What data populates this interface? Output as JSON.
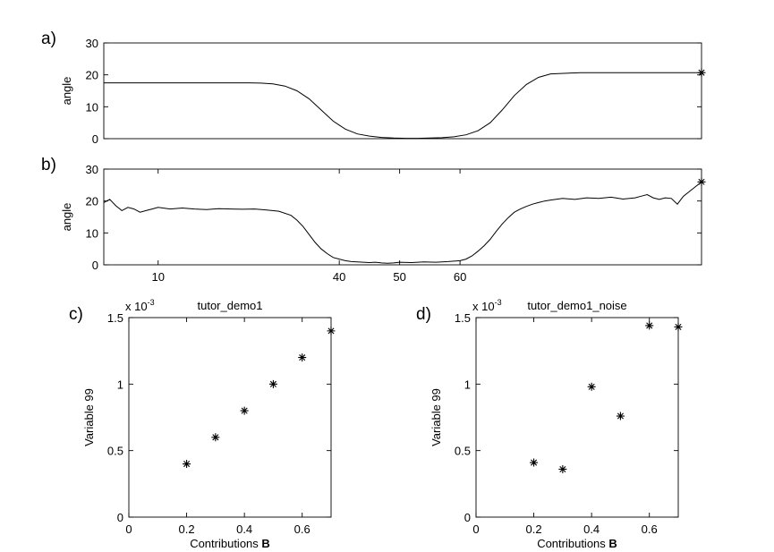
{
  "chart_data": [
    {
      "type": "line",
      "panel_label": "a)",
      "ylabel": "angle",
      "xlim": [
        1,
        100
      ],
      "ylim": [
        0,
        30
      ],
      "yticks": [
        0,
        10,
        20,
        30
      ],
      "xticks": [],
      "series": [
        {
          "x": [
            1,
            5,
            10,
            15,
            20,
            25,
            27,
            29,
            31,
            33,
            35,
            37,
            39,
            41,
            43,
            45,
            47,
            49,
            51,
            53,
            55,
            57,
            59,
            61,
            63,
            65,
            67,
            69,
            71,
            73,
            75,
            80,
            90,
            100
          ],
          "values": [
            17.5,
            17.5,
            17.5,
            17.5,
            17.5,
            17.5,
            17.4,
            17.2,
            16.5,
            15.0,
            12.5,
            9.0,
            5.5,
            3.0,
            1.5,
            0.8,
            0.4,
            0.2,
            0.1,
            0.1,
            0.2,
            0.3,
            0.6,
            1.2,
            2.5,
            5.0,
            9.0,
            13.5,
            17.0,
            19.2,
            20.3,
            20.7,
            20.7,
            20.7
          ]
        }
      ],
      "end_marker": {
        "x": 100,
        "y": 20.7
      }
    },
    {
      "type": "line",
      "panel_label": "b)",
      "ylabel": "angle",
      "xlim": [
        1,
        100
      ],
      "ylim": [
        0,
        30
      ],
      "yticks": [
        0,
        10,
        20,
        30
      ],
      "xticks": [
        10,
        40,
        50,
        60
      ],
      "series": [
        {
          "x": [
            1,
            2,
            3,
            4,
            5,
            6,
            7,
            8,
            9,
            10,
            12,
            14,
            16,
            18,
            20,
            22,
            24,
            26,
            28,
            30,
            32,
            33,
            34,
            35,
            36,
            37,
            38,
            39,
            40,
            41,
            42,
            43,
            44,
            45,
            46,
            47,
            48,
            49,
            50,
            52,
            54,
            56,
            58,
            60,
            61,
            62,
            63,
            64,
            65,
            66,
            67,
            68,
            69,
            70,
            71,
            72,
            73,
            74,
            75,
            77,
            79,
            81,
            83,
            85,
            87,
            89,
            90,
            91,
            92,
            93,
            94,
            95,
            96,
            97,
            98,
            99,
            100
          ],
          "values": [
            19.5,
            20.5,
            18.5,
            17.0,
            18.0,
            17.5,
            16.5,
            17.0,
            17.5,
            18.0,
            17.5,
            17.8,
            17.5,
            17.3,
            17.6,
            17.5,
            17.4,
            17.5,
            17.2,
            16.8,
            15.5,
            14.0,
            12.0,
            9.5,
            7.0,
            5.0,
            3.5,
            2.3,
            1.8,
            1.3,
            1.0,
            0.9,
            0.8,
            0.7,
            0.8,
            0.6,
            0.5,
            0.6,
            0.8,
            0.7,
            0.9,
            0.8,
            1.0,
            1.3,
            1.8,
            2.8,
            4.3,
            6.0,
            8.0,
            10.5,
            12.8,
            14.8,
            16.5,
            17.5,
            18.3,
            19.0,
            19.5,
            20.0,
            20.3,
            20.8,
            20.5,
            21.0,
            20.8,
            21.2,
            20.6,
            21.0,
            21.5,
            22.0,
            21.0,
            20.5,
            21.0,
            20.8,
            19.0,
            21.5,
            23.0,
            24.5,
            26.0
          ]
        }
      ],
      "end_marker": {
        "x": 100,
        "y": 26.0
      }
    },
    {
      "type": "scatter",
      "panel_label": "c)",
      "title": "tutor_demo1",
      "xlabel": "Contributions ",
      "xlabel_bold": "B",
      "ylabel": "Variable 99",
      "exponent_label": "x 10",
      "exponent_power": "-3",
      "xlim": [
        0,
        0.7
      ],
      "ylim": [
        0,
        1.5
      ],
      "xticks": [
        0,
        0.2,
        0.4,
        0.6
      ],
      "xtick_labels": [
        "0",
        "0.2",
        "0.4",
        "0.6"
      ],
      "yticks": [
        0,
        0.5,
        1,
        1.5
      ],
      "ytick_labels": [
        "0",
        "0.5",
        "1",
        "1.5"
      ],
      "x": [
        0.2,
        0.3,
        0.4,
        0.5,
        0.6,
        0.7
      ],
      "values": [
        0.4,
        0.6,
        0.8,
        1.0,
        1.2,
        1.4
      ]
    },
    {
      "type": "scatter",
      "panel_label": "d)",
      "title": "tutor_demo1_noise",
      "xlabel": "Contributions ",
      "xlabel_bold": "B",
      "ylabel": "Variable 99",
      "exponent_label": "x 10",
      "exponent_power": "-3",
      "xlim": [
        0,
        0.7
      ],
      "ylim": [
        0,
        1.5
      ],
      "xticks": [
        0,
        0.2,
        0.4,
        0.6
      ],
      "xtick_labels": [
        "0",
        "0.2",
        "0.4",
        "0.6"
      ],
      "yticks": [
        0,
        0.5,
        1,
        1.5
      ],
      "ytick_labels": [
        "0",
        "0.5",
        "1",
        "1.5"
      ],
      "x": [
        0.2,
        0.3,
        0.4,
        0.5,
        0.6,
        0.7
      ],
      "values": [
        0.41,
        0.36,
        0.98,
        0.76,
        1.44,
        1.43
      ]
    }
  ]
}
